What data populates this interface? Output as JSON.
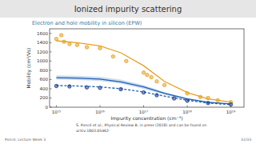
{
  "header": {
    "title": "Ionized impurity scattering"
  },
  "chart_data": {
    "type": "scatter",
    "title": "Electron and hole mobility in silicon (EPW)",
    "x_label": "Impurity concentration (cm⁻³)",
    "y_label": "Mobility (cm²/Vs)",
    "log": "x",
    "grid": false,
    "xlim": [
      700000000000000.0,
      2e+19
    ],
    "xticks": [
      {
        "value": 1000000000000000.0,
        "label": "10¹⁵"
      },
      {
        "value": 1e+16,
        "label": "10¹⁶"
      },
      {
        "value": 1e+17,
        "label": "10¹⁷"
      },
      {
        "value": 1e+18,
        "label": "10¹⁸"
      },
      {
        "value": 1e+19,
        "label": "10¹⁹"
      }
    ],
    "ylim": [
      0,
      1700
    ],
    "yticks": [
      0,
      200,
      400,
      600,
      800,
      1000,
      1200,
      1400,
      1600
    ],
    "series": [
      {
        "type": "band",
        "color": "#a9c6e8",
        "x": [
          1000000000000000.0,
          3000000000000000.0,
          1e+16,
          3e+16,
          1e+17,
          3e+17,
          1e+18,
          3e+18,
          1e+19
        ],
        "values": [
          690,
          680,
          660,
          600,
          480,
          330,
          200,
          120,
          80
        ],
        "lower": [
          600,
          590,
          570,
          510,
          400,
          270,
          160,
          95,
          60
        ]
      },
      {
        "type": "line",
        "color": "#1f5fb0",
        "line_style": "solid",
        "x": [
          1000000000000000.0,
          3000000000000000.0,
          1e+16,
          3e+16,
          1e+17,
          3e+17,
          1e+18,
          3e+18,
          1e+19
        ],
        "values": [
          640,
          630,
          610,
          550,
          440,
          300,
          180,
          105,
          70
        ]
      },
      {
        "type": "line",
        "color": "#1f5fb0",
        "line_style": "dashed",
        "x": [
          1000000000000000.0,
          3000000000000000.0,
          1e+16,
          3e+16,
          1e+17,
          3e+17,
          1e+18,
          3e+18,
          1e+19
        ],
        "values": [
          470,
          460,
          440,
          400,
          330,
          240,
          150,
          90,
          55
        ]
      },
      {
        "type": "line",
        "color": "#e8a020",
        "line_style": "solid",
        "x": [
          1000000000000000.0,
          3000000000000000.0,
          1e+16,
          3e+16,
          1e+17,
          3e+17,
          1e+18,
          3e+18,
          1e+19
        ],
        "values": [
          1440,
          1400,
          1330,
          1180,
          900,
          560,
          320,
          180,
          110
        ]
      },
      {
        "type": "scatter",
        "color": "#e8a020",
        "marker": "circle",
        "x": [
          1000000000000000.0,
          1300000000000000.0,
          1500000000000000.0,
          2000000000000000.0,
          3000000000000000.0,
          5000000000000000.0,
          1e+16,
          2e+16,
          4e+16,
          1e+17,
          1.2e+17,
          1.5e+17,
          2e+17,
          3e+17,
          1e+18,
          2e+18,
          3e+18,
          5e+18,
          1e+19
        ],
        "values": [
          1480,
          1560,
          1420,
          1370,
          1350,
          1300,
          1280,
          1100,
          1000,
          750,
          700,
          650,
          560,
          480,
          300,
          220,
          200,
          150,
          110
        ]
      },
      {
        "type": "scatter",
        "color": "#1a3d8f",
        "marker": "circle",
        "x": [
          1000000000000000.0,
          2000000000000000.0,
          5000000000000000.0,
          1e+16,
          3e+16,
          1e+17,
          2e+17,
          5e+17,
          1e+18,
          3e+18,
          1e+19
        ],
        "values": [
          460,
          450,
          430,
          420,
          390,
          320,
          260,
          190,
          140,
          90,
          60
        ]
      }
    ]
  },
  "reference": [
    "S. Poncé et al., Physical Review B, in press (2018) and can be found on",
    "arXiv:1803.05462"
  ],
  "footer": {
    "left": "Poncé, Lecture Week 3",
    "right": "32/33"
  }
}
